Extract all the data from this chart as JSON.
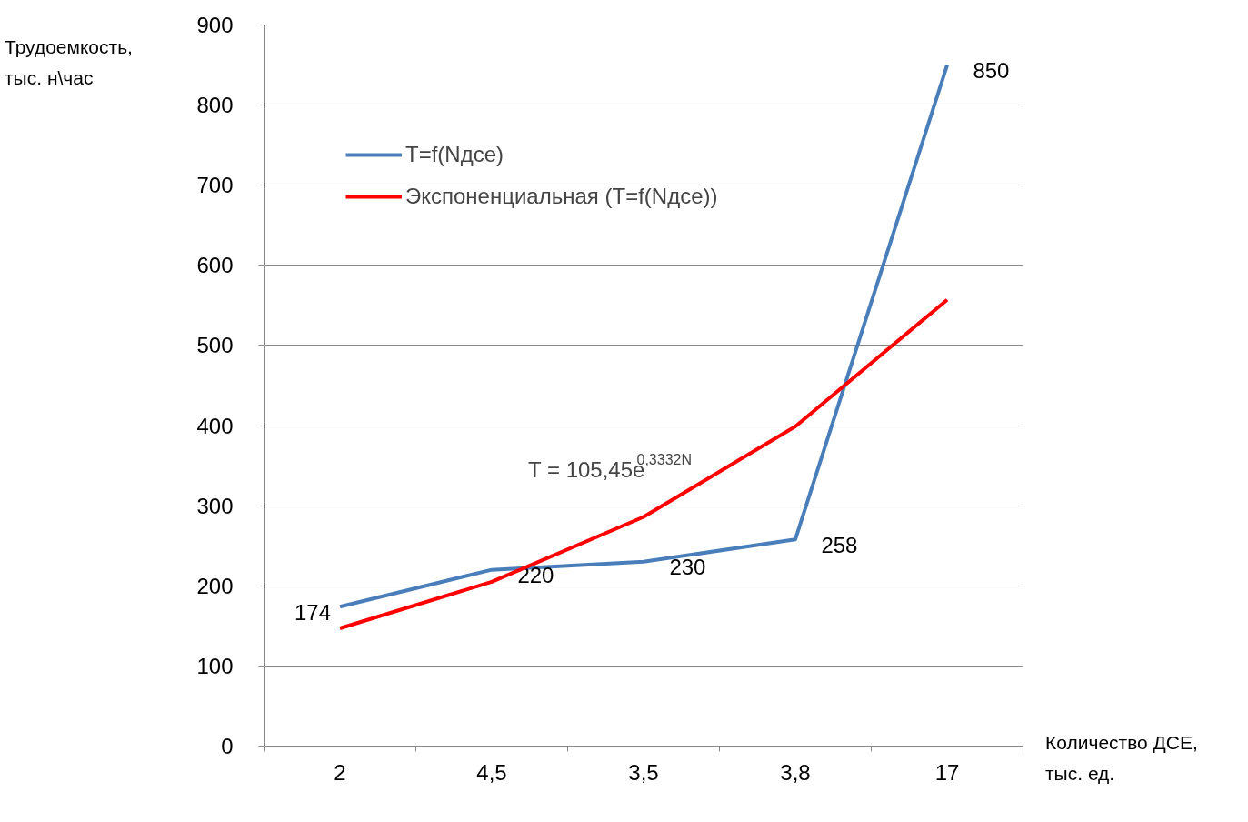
{
  "chart_data": {
    "type": "line",
    "xlabel": "Количество ДСЕ,\nтыс. ед.",
    "ylabel": "Трудоемкость,\nтыс. н\\час",
    "categories": [
      "2",
      "4,5",
      "3,5",
      "3,8",
      "17"
    ],
    "series": [
      {
        "name": "T=f(Nдсе)",
        "color": "#4a7ebb",
        "values": [
          174,
          220,
          230,
          258,
          850
        ],
        "value_labels": [
          "174",
          "220",
          "230",
          "258",
          "850"
        ]
      },
      {
        "name": "Экспоненциальная (T=f(Nдсе))",
        "color": "#ff0000",
        "values": [
          147,
          205,
          286,
          399,
          557
        ]
      }
    ],
    "annotations": [
      "T = 105,45e$^{0,3332N}$"
    ],
    "ylim": [
      0,
      900
    ],
    "yticks": [
      0,
      100,
      200,
      300,
      400,
      500,
      600,
      700,
      800,
      900
    ],
    "grid": "y",
    "legend": "top left"
  }
}
